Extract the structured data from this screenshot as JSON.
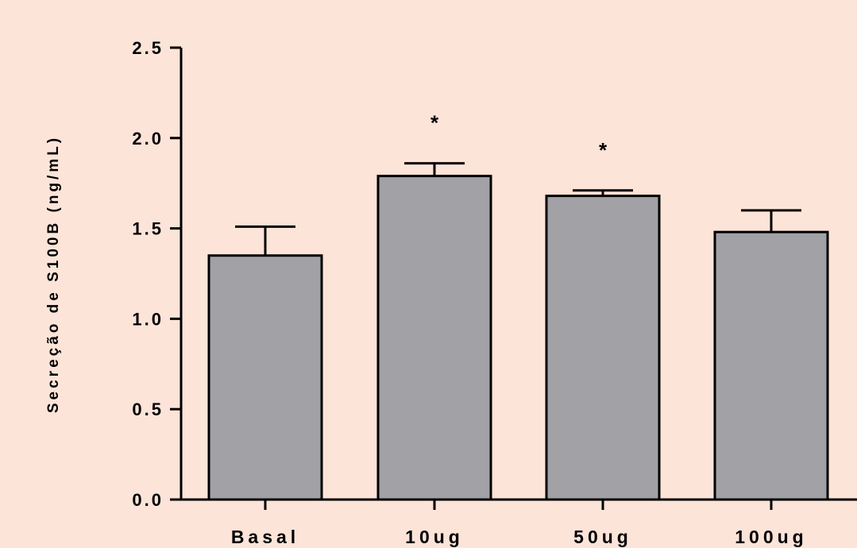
{
  "chart_data": {
    "type": "bar",
    "title": "",
    "xlabel": "",
    "ylabel": "Secreção de S100B (ng/mL)",
    "ylim": [
      0,
      2.5
    ],
    "yticks": [
      "0.0",
      "0.5",
      "1.0",
      "1.5",
      "2.0",
      "2.5"
    ],
    "categories": [
      "Basal",
      "10ug",
      "50ug",
      "100ug"
    ],
    "values": [
      1.35,
      1.79,
      1.68,
      1.48
    ],
    "errors": [
      0.16,
      0.07,
      0.03,
      0.12
    ],
    "annotations": [
      "",
      "*",
      "*",
      ""
    ],
    "bar_color": "#a2a1a6",
    "background": "#fde4d9",
    "grid": false,
    "legend": "none"
  }
}
